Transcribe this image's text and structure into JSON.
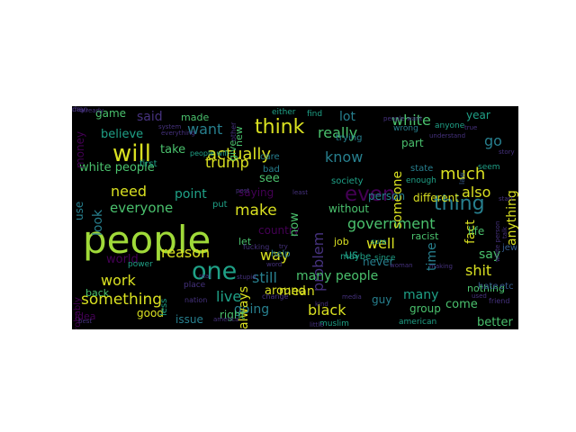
{
  "palette": {
    "background": "#000000",
    "canvas": "#ffffff",
    "yellow": "#d9e021",
    "lime": "#a0da39",
    "green": "#4ac16d",
    "teal": "#1fa187",
    "cyan": "#277f8e",
    "blue": "#365c8d",
    "indigo": "#46327e",
    "purple": "#440154"
  },
  "words": [
    {
      "text": "people",
      "color": "lime"
    },
    {
      "text": "will",
      "color": "yellow"
    },
    {
      "text": "one",
      "color": "teal"
    },
    {
      "text": "think",
      "color": "yellow"
    },
    {
      "text": "even",
      "color": "purple"
    },
    {
      "text": "thing",
      "color": "cyan"
    },
    {
      "text": "make",
      "color": "yellow"
    },
    {
      "text": "actually",
      "color": "yellow"
    },
    {
      "text": "government",
      "color": "green"
    },
    {
      "text": "problem",
      "color": "indigo"
    },
    {
      "text": "way",
      "color": "yellow"
    },
    {
      "text": "much",
      "color": "yellow"
    },
    {
      "text": "also",
      "color": "yellow"
    },
    {
      "text": "know",
      "color": "cyan"
    },
    {
      "text": "really",
      "color": "green"
    },
    {
      "text": "white",
      "color": "green"
    },
    {
      "text": "reason",
      "color": "yellow"
    },
    {
      "text": "want",
      "color": "cyan"
    },
    {
      "text": "well",
      "color": "yellow"
    },
    {
      "text": "still",
      "color": "cyan"
    },
    {
      "text": "black",
      "color": "yellow"
    },
    {
      "text": "something",
      "color": "yellow"
    },
    {
      "text": "work",
      "color": "yellow"
    },
    {
      "text": "live",
      "color": "teal"
    },
    {
      "text": "shit",
      "color": "yellow"
    },
    {
      "text": "say",
      "color": "green"
    },
    {
      "text": "going",
      "color": "cyan"
    },
    {
      "text": "many",
      "color": "teal"
    },
    {
      "text": "come",
      "color": "green"
    },
    {
      "text": "mean",
      "color": "yellow"
    },
    {
      "text": "lot",
      "color": "cyan"
    },
    {
      "text": "go",
      "color": "cyan"
    },
    {
      "text": "anything",
      "color": "yellow"
    },
    {
      "text": "point",
      "color": "teal"
    },
    {
      "text": "need",
      "color": "yellow"
    },
    {
      "text": "look",
      "color": "cyan"
    },
    {
      "text": "said",
      "color": "indigo"
    },
    {
      "text": "everyone",
      "color": "green"
    },
    {
      "text": "fact",
      "color": "yellow"
    },
    {
      "text": "time",
      "color": "cyan"
    },
    {
      "text": "someone",
      "color": "yellow"
    },
    {
      "text": "trump",
      "color": "yellow"
    },
    {
      "text": "see",
      "color": "green"
    },
    {
      "text": "white people",
      "color": "green"
    },
    {
      "text": "many people",
      "color": "green"
    },
    {
      "text": "country",
      "color": "purple"
    },
    {
      "text": "around",
      "color": "yellow"
    },
    {
      "text": "always",
      "color": "yellow"
    },
    {
      "text": "better",
      "color": "green"
    },
    {
      "text": "game",
      "color": "green"
    },
    {
      "text": "take",
      "color": "green"
    },
    {
      "text": "believe",
      "color": "teal"
    },
    {
      "text": "saying",
      "color": "purple"
    },
    {
      "text": "person",
      "color": "cyan"
    },
    {
      "text": "different",
      "color": "yellow"
    },
    {
      "text": "without",
      "color": "green"
    },
    {
      "text": "group",
      "color": "green"
    },
    {
      "text": "life",
      "color": "green"
    },
    {
      "text": "good",
      "color": "yellow"
    },
    {
      "text": "right",
      "color": "green"
    },
    {
      "text": "issue",
      "color": "cyan"
    },
    {
      "text": "us",
      "color": "teal"
    },
    {
      "text": "guy",
      "color": "cyan"
    },
    {
      "text": "world",
      "color": "purple"
    },
    {
      "text": "use",
      "color": "cyan"
    },
    {
      "text": "now",
      "color": "green"
    },
    {
      "text": "never",
      "color": "cyan"
    },
    {
      "text": "part",
      "color": "green"
    },
    {
      "text": "year",
      "color": "teal"
    },
    {
      "text": "money",
      "color": "purple"
    },
    {
      "text": "new",
      "color": "green"
    },
    {
      "text": "back",
      "color": "green"
    },
    {
      "text": "let",
      "color": "green"
    },
    {
      "text": "job",
      "color": "yellow"
    },
    {
      "text": "racist",
      "color": "green"
    },
    {
      "text": "made",
      "color": "green"
    },
    {
      "text": "first",
      "color": "teal"
    },
    {
      "text": "put",
      "color": "teal"
    },
    {
      "text": "state",
      "color": "cyan"
    },
    {
      "text": "nothing",
      "color": "green"
    },
    {
      "text": "give",
      "color": "green"
    },
    {
      "text": "less",
      "color": "teal"
    },
    {
      "text": "maybe",
      "color": "teal"
    },
    {
      "text": "help",
      "color": "cyan"
    },
    {
      "text": "bad",
      "color": "cyan"
    },
    {
      "text": "care",
      "color": "cyan"
    },
    {
      "text": "trying",
      "color": "cyan"
    },
    {
      "text": "society",
      "color": "teal"
    },
    {
      "text": "muslim",
      "color": "teal"
    },
    {
      "text": "american",
      "color": "teal"
    },
    {
      "text": "either",
      "color": "teal"
    },
    {
      "text": "find",
      "color": "teal"
    },
    {
      "text": "enough",
      "color": "teal"
    },
    {
      "text": "power",
      "color": "teal"
    },
    {
      "text": "idea",
      "color": "purple"
    },
    {
      "text": "since",
      "color": "teal"
    },
    {
      "text": "anyone",
      "color": "teal"
    },
    {
      "text": "seem",
      "color": "teal"
    },
    {
      "text": "probably",
      "color": "purple"
    },
    {
      "text": "sure",
      "color": "teal"
    },
    {
      "text": "people will",
      "color": "teal"
    },
    {
      "text": "wrong",
      "color": "cyan"
    },
    {
      "text": "jew",
      "color": "blue"
    },
    {
      "text": "law",
      "color": "blue"
    },
    {
      "text": "hate",
      "color": "blue"
    },
    {
      "text": "etc",
      "color": "blue"
    },
    {
      "text": "place",
      "color": "indigo"
    },
    {
      "text": "nation",
      "color": "indigo"
    },
    {
      "text": "fucking",
      "color": "indigo"
    },
    {
      "text": "change",
      "color": "indigo"
    },
    {
      "text": "little",
      "color": "indigo"
    },
    {
      "text": "kind",
      "color": "indigo"
    },
    {
      "text": "used",
      "color": "indigo"
    },
    {
      "text": "best",
      "color": "indigo"
    },
    {
      "text": "least",
      "color": "indigo"
    },
    {
      "text": "america",
      "color": "indigo"
    },
    {
      "text": "system",
      "color": "indigo"
    },
    {
      "text": "everything",
      "color": "indigo"
    },
    {
      "text": "post",
      "color": "indigo"
    },
    {
      "text": "other",
      "color": "indigo"
    },
    {
      "text": "people want",
      "color": "indigo"
    },
    {
      "text": "understand",
      "color": "indigo"
    },
    {
      "text": "true",
      "color": "indigo"
    },
    {
      "text": "making",
      "color": "indigo"
    },
    {
      "text": "try",
      "color": "indigo"
    },
    {
      "text": "real",
      "color": "indigo"
    },
    {
      "text": "stupid",
      "color": "indigo"
    },
    {
      "text": "word",
      "color": "indigo"
    },
    {
      "text": "friend",
      "color": "indigo"
    },
    {
      "text": "talk",
      "color": "indigo"
    },
    {
      "text": "start",
      "color": "indigo"
    },
    {
      "text": "white person",
      "color": "indigo"
    },
    {
      "text": "already",
      "color": "indigo"
    },
    {
      "text": "story",
      "color": "indigo"
    },
    {
      "text": "media",
      "color": "indigo"
    },
    {
      "text": "woman",
      "color": "indigo"
    },
    {
      "text": "day",
      "color": "indigo"
    },
    {
      "text": "man",
      "color": "indigo"
    }
  ]
}
